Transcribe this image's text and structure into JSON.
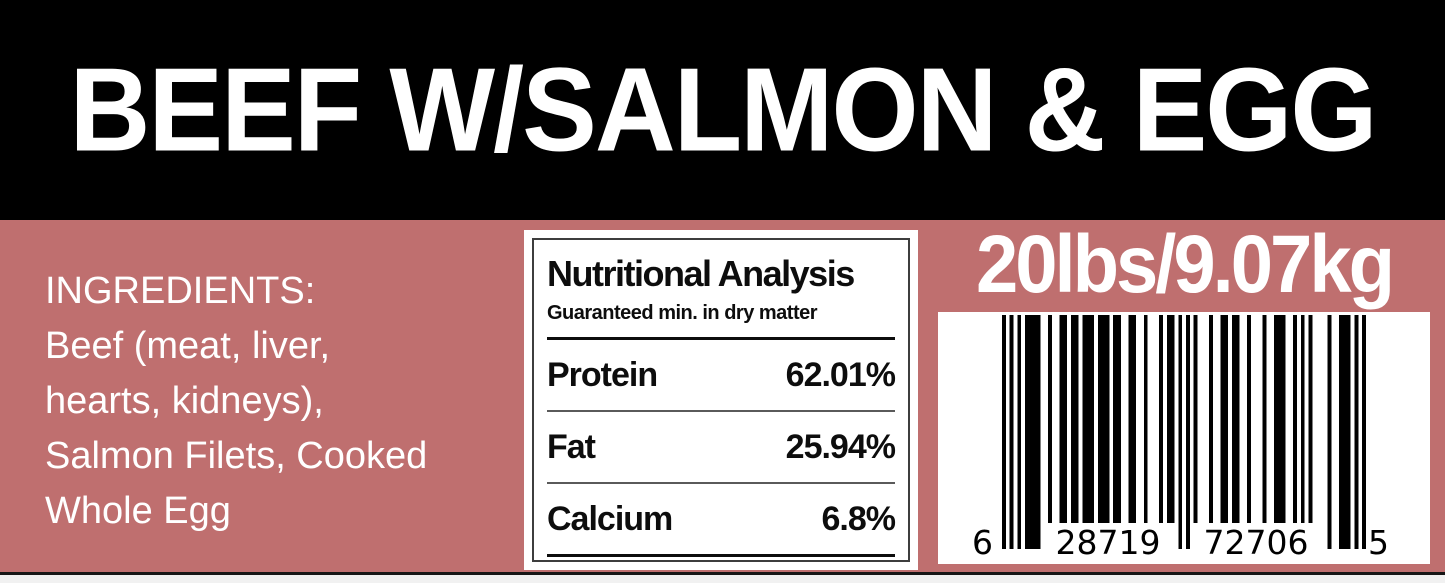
{
  "colors": {
    "header_bg": "#000000",
    "label_bg": "#bf6f6f",
    "panel_bg": "#ffffff",
    "text_light": "#ffffff",
    "text_dark": "#0d0d0d",
    "bar_color": "#000000",
    "bottom_edge": "#161616"
  },
  "header": {
    "title": "BEEF W/SALMON & EGG"
  },
  "ingredients": {
    "text": "INGREDIENTS:\nBeef (meat, liver,\nhearts, kidneys),\nSalmon Filets, Cooked\nWhole Egg"
  },
  "nutrition": {
    "title": "Nutritional Analysis",
    "subtitle": "Guaranteed min. in dry matter",
    "rows": [
      {
        "name": "Protein",
        "value": "62.01%"
      },
      {
        "name": "Fat",
        "value": "25.94%"
      },
      {
        "name": "Calcium",
        "value": "6.8%"
      }
    ]
  },
  "weight": {
    "text": "20lbs/9.07kg"
  },
  "barcode": {
    "code": "628719727065",
    "display": {
      "first": "6",
      "left_group": "28719",
      "right_group": "72706",
      "last": "5"
    }
  }
}
